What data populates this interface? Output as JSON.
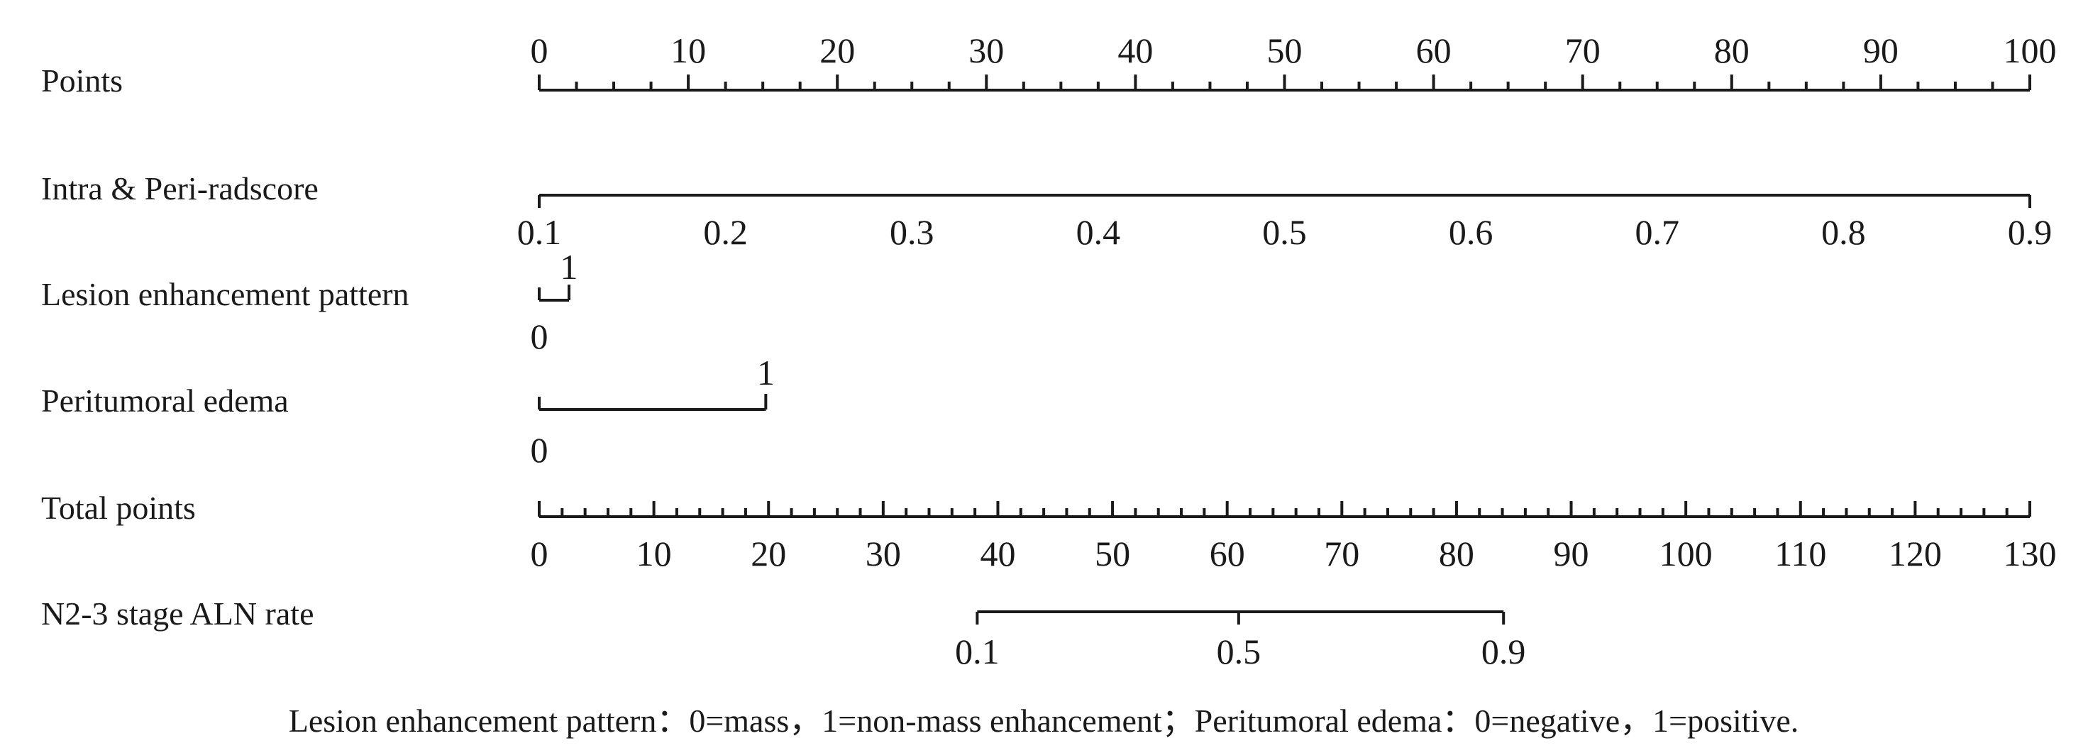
{
  "chart_data": {
    "type": "nomogram",
    "rows": [
      {
        "id": "points",
        "label": "Points",
        "range": [
          0,
          100
        ],
        "tick_labels": [
          "0",
          "10",
          "20",
          "30",
          "40",
          "50",
          "60",
          "70",
          "80",
          "90",
          "100"
        ],
        "tick_values": [
          0,
          10,
          20,
          30,
          40,
          50,
          60,
          70,
          80,
          90,
          100
        ],
        "minor_step": 2.5
      },
      {
        "id": "radscore",
        "label": "Intra & Peri-radscore",
        "points_range": [
          0,
          100
        ],
        "value_range": [
          0.1,
          0.9
        ],
        "tick_labels": [
          "0.1",
          "0.2",
          "0.3",
          "0.4",
          "0.5",
          "0.6",
          "0.7",
          "0.8",
          "0.9"
        ],
        "tick_values": [
          0.1,
          0.2,
          0.3,
          0.4,
          0.5,
          0.6,
          0.7,
          0.8,
          0.9
        ]
      },
      {
        "id": "enhancement",
        "label": "Lesion enhancement pattern",
        "levels": [
          {
            "label": "0",
            "points": 0
          },
          {
            "label": "1",
            "points": 2
          }
        ]
      },
      {
        "id": "edema",
        "label": "Peritumoral edema",
        "levels": [
          {
            "label": "0",
            "points": 0
          },
          {
            "label": "1",
            "points": 15.2
          }
        ]
      },
      {
        "id": "total",
        "label": "Total points",
        "range": [
          0,
          130
        ],
        "tick_labels": [
          "0",
          "10",
          "20",
          "30",
          "40",
          "50",
          "60",
          "70",
          "80",
          "90",
          "100",
          "110",
          "120",
          "130"
        ],
        "tick_values": [
          0,
          10,
          20,
          30,
          40,
          50,
          60,
          70,
          80,
          90,
          100,
          110,
          120,
          130
        ],
        "minor_step": 2
      },
      {
        "id": "rate",
        "label": "N2-3 stage ALN rate",
        "tick_labels": [
          "0.1",
          "0.5",
          "0.9"
        ],
        "tick_values": [
          0.1,
          0.5,
          0.9
        ],
        "total_points_at_ticks": [
          38.2,
          61.0,
          84.1
        ]
      }
    ],
    "footnote": "Lesion enhancement pattern：0=mass，1=non-mass enhancement；Peritumoral edema：0=negative，1=positive."
  }
}
